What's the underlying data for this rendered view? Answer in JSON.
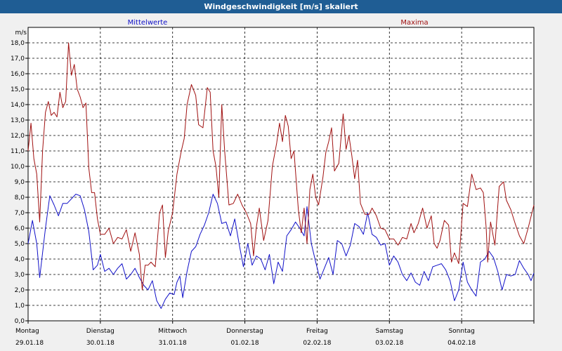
{
  "window": {
    "title": "Windgeschwindigkeit [m/s] skaliert"
  },
  "chart_data": {
    "type": "line",
    "title": "Windgeschwindigkeit [m/s] skaliert",
    "ylabel": "m/s",
    "xlabel": "",
    "ylim": [
      0,
      19
    ],
    "yticks": [
      "0,0",
      "1,0",
      "2,0",
      "3,0",
      "4,0",
      "5,0",
      "6,0",
      "7,0",
      "8,0",
      "9,0",
      "10,0",
      "11,0",
      "12,0",
      "13,0",
      "14,0",
      "15,0",
      "16,0",
      "17,0",
      "18,0"
    ],
    "xlim": [
      0,
      7
    ],
    "days": [
      {
        "weekday": "Montag",
        "date": "29.01.18"
      },
      {
        "weekday": "Dienstag",
        "date": "30.01.18"
      },
      {
        "weekday": "Mittwoch",
        "date": "31.01.18"
      },
      {
        "weekday": "Donnerstag",
        "date": "01.02.18"
      },
      {
        "weekday": "Freitag",
        "date": "02.02.18"
      },
      {
        "weekday": "Samstag",
        "date": "03.02.18"
      },
      {
        "weekday": "Sonntag",
        "date": "04.02.18"
      }
    ],
    "grid": true,
    "legend": "top",
    "series": [
      {
        "name": "Mittelwerte",
        "color": "#1010c8",
        "points": [
          [
            0.0,
            5.0
          ],
          [
            0.06,
            6.5
          ],
          [
            0.12,
            5.0
          ],
          [
            0.16,
            2.8
          ],
          [
            0.24,
            6.0
          ],
          [
            0.3,
            8.1
          ],
          [
            0.36,
            7.5
          ],
          [
            0.42,
            6.8
          ],
          [
            0.48,
            7.6
          ],
          [
            0.54,
            7.6
          ],
          [
            0.6,
            7.9
          ],
          [
            0.66,
            8.2
          ],
          [
            0.72,
            8.1
          ],
          [
            0.78,
            7.2
          ],
          [
            0.84,
            5.8
          ],
          [
            0.9,
            3.3
          ],
          [
            0.96,
            3.6
          ],
          [
            1.0,
            4.3
          ],
          [
            1.06,
            3.2
          ],
          [
            1.12,
            3.4
          ],
          [
            1.18,
            3.0
          ],
          [
            1.24,
            3.4
          ],
          [
            1.3,
            3.7
          ],
          [
            1.36,
            2.7
          ],
          [
            1.42,
            3.0
          ],
          [
            1.48,
            3.4
          ],
          [
            1.54,
            2.8
          ],
          [
            1.6,
            2.3
          ],
          [
            1.66,
            2.0
          ],
          [
            1.72,
            2.6
          ],
          [
            1.78,
            1.3
          ],
          [
            1.84,
            0.8
          ],
          [
            1.9,
            1.4
          ],
          [
            1.96,
            1.8
          ],
          [
            2.02,
            1.7
          ],
          [
            2.06,
            2.5
          ],
          [
            2.1,
            2.9
          ],
          [
            2.14,
            1.5
          ],
          [
            2.2,
            3.2
          ],
          [
            2.26,
            4.5
          ],
          [
            2.32,
            4.8
          ],
          [
            2.38,
            5.6
          ],
          [
            2.44,
            6.2
          ],
          [
            2.5,
            7.0
          ],
          [
            2.56,
            8.2
          ],
          [
            2.62,
            7.6
          ],
          [
            2.68,
            6.3
          ],
          [
            2.74,
            6.4
          ],
          [
            2.8,
            5.5
          ],
          [
            2.86,
            6.6
          ],
          [
            2.92,
            5.0
          ],
          [
            2.98,
            3.5
          ],
          [
            3.04,
            5.0
          ],
          [
            3.1,
            3.6
          ],
          [
            3.16,
            4.2
          ],
          [
            3.22,
            4.0
          ],
          [
            3.28,
            3.3
          ],
          [
            3.34,
            4.3
          ],
          [
            3.4,
            2.4
          ],
          [
            3.46,
            3.8
          ],
          [
            3.52,
            3.2
          ],
          [
            3.58,
            5.5
          ],
          [
            3.64,
            5.9
          ],
          [
            3.7,
            6.4
          ],
          [
            3.76,
            6.0
          ],
          [
            3.82,
            5.5
          ],
          [
            3.86,
            7.4
          ],
          [
            3.92,
            5.0
          ],
          [
            3.98,
            3.8
          ],
          [
            4.04,
            2.7
          ],
          [
            4.1,
            3.4
          ],
          [
            4.16,
            4.1
          ],
          [
            4.22,
            3.0
          ],
          [
            4.28,
            5.2
          ],
          [
            4.34,
            5.0
          ],
          [
            4.4,
            4.2
          ],
          [
            4.46,
            4.9
          ],
          [
            4.52,
            6.3
          ],
          [
            4.58,
            6.1
          ],
          [
            4.64,
            5.6
          ],
          [
            4.7,
            7.0
          ],
          [
            4.76,
            5.6
          ],
          [
            4.82,
            5.4
          ],
          [
            4.88,
            4.9
          ],
          [
            4.94,
            5.0
          ],
          [
            5.0,
            3.6
          ],
          [
            5.06,
            4.2
          ],
          [
            5.12,
            3.8
          ],
          [
            5.18,
            3.0
          ],
          [
            5.24,
            2.6
          ],
          [
            5.3,
            3.1
          ],
          [
            5.36,
            2.5
          ],
          [
            5.42,
            2.3
          ],
          [
            5.48,
            3.2
          ],
          [
            5.54,
            2.6
          ],
          [
            5.6,
            3.5
          ],
          [
            5.66,
            3.6
          ],
          [
            5.72,
            3.7
          ],
          [
            5.78,
            3.3
          ],
          [
            5.84,
            2.6
          ],
          [
            5.9,
            1.3
          ],
          [
            5.96,
            2.0
          ],
          [
            6.02,
            3.8
          ],
          [
            6.08,
            2.5
          ],
          [
            6.14,
            2.0
          ],
          [
            6.2,
            1.6
          ],
          [
            6.26,
            3.8
          ],
          [
            6.32,
            4.0
          ],
          [
            6.38,
            4.5
          ],
          [
            6.44,
            4.1
          ],
          [
            6.5,
            3.2
          ],
          [
            6.56,
            2.0
          ],
          [
            6.62,
            3.0
          ],
          [
            6.68,
            2.9
          ],
          [
            6.74,
            3.0
          ],
          [
            6.8,
            3.9
          ],
          [
            6.86,
            3.4
          ],
          [
            6.92,
            3.0
          ],
          [
            6.96,
            2.6
          ],
          [
            7.0,
            3.1
          ]
        ]
      },
      {
        "name": "Maxima",
        "color": "#a01010",
        "points": [
          [
            0.0,
            11.0
          ],
          [
            0.04,
            12.8
          ],
          [
            0.08,
            10.5
          ],
          [
            0.12,
            9.5
          ],
          [
            0.16,
            6.4
          ],
          [
            0.2,
            11.0
          ],
          [
            0.24,
            13.5
          ],
          [
            0.28,
            14.2
          ],
          [
            0.32,
            13.3
          ],
          [
            0.36,
            13.5
          ],
          [
            0.4,
            13.2
          ],
          [
            0.44,
            14.8
          ],
          [
            0.48,
            13.8
          ],
          [
            0.52,
            14.2
          ],
          [
            0.56,
            18.0
          ],
          [
            0.6,
            15.9
          ],
          [
            0.64,
            16.6
          ],
          [
            0.68,
            15.0
          ],
          [
            0.72,
            14.5
          ],
          [
            0.76,
            13.8
          ],
          [
            0.8,
            14.1
          ],
          [
            0.84,
            9.9
          ],
          [
            0.88,
            8.3
          ],
          [
            0.92,
            8.3
          ],
          [
            0.96,
            6.6
          ],
          [
            1.0,
            5.6
          ],
          [
            1.06,
            5.6
          ],
          [
            1.12,
            6.0
          ],
          [
            1.18,
            5.0
          ],
          [
            1.24,
            5.4
          ],
          [
            1.3,
            5.3
          ],
          [
            1.36,
            5.9
          ],
          [
            1.42,
            4.5
          ],
          [
            1.48,
            5.7
          ],
          [
            1.54,
            4.3
          ],
          [
            1.58,
            2.0
          ],
          [
            1.62,
            3.6
          ],
          [
            1.66,
            3.6
          ],
          [
            1.7,
            3.8
          ],
          [
            1.76,
            3.5
          ],
          [
            1.82,
            7.0
          ],
          [
            1.86,
            7.5
          ],
          [
            1.9,
            4.1
          ],
          [
            1.94,
            5.8
          ],
          [
            2.0,
            7.0
          ],
          [
            2.06,
            9.5
          ],
          [
            2.12,
            11.0
          ],
          [
            2.16,
            11.8
          ],
          [
            2.2,
            14.0
          ],
          [
            2.26,
            15.3
          ],
          [
            2.32,
            14.6
          ],
          [
            2.36,
            12.7
          ],
          [
            2.42,
            12.5
          ],
          [
            2.48,
            15.1
          ],
          [
            2.52,
            14.8
          ],
          [
            2.56,
            11.0
          ],
          [
            2.6,
            10.0
          ],
          [
            2.64,
            8.0
          ],
          [
            2.68,
            14.0
          ],
          [
            2.72,
            11.0
          ],
          [
            2.78,
            7.5
          ],
          [
            2.84,
            7.6
          ],
          [
            2.9,
            8.2
          ],
          [
            2.96,
            7.5
          ],
          [
            3.02,
            7.0
          ],
          [
            3.08,
            6.3
          ],
          [
            3.12,
            4.2
          ],
          [
            3.16,
            6.1
          ],
          [
            3.2,
            7.3
          ],
          [
            3.26,
            5.2
          ],
          [
            3.32,
            6.5
          ],
          [
            3.38,
            10.0
          ],
          [
            3.44,
            11.5
          ],
          [
            3.48,
            12.8
          ],
          [
            3.52,
            11.6
          ],
          [
            3.56,
            13.3
          ],
          [
            3.6,
            12.6
          ],
          [
            3.64,
            10.5
          ],
          [
            3.68,
            11.0
          ],
          [
            3.74,
            7.2
          ],
          [
            3.78,
            5.7
          ],
          [
            3.82,
            7.3
          ],
          [
            3.86,
            5.0
          ],
          [
            3.9,
            8.5
          ],
          [
            3.94,
            9.5
          ],
          [
            3.98,
            8.0
          ],
          [
            4.02,
            7.5
          ],
          [
            4.08,
            9.3
          ],
          [
            4.12,
            10.9
          ],
          [
            4.16,
            11.6
          ],
          [
            4.2,
            12.5
          ],
          [
            4.24,
            9.7
          ],
          [
            4.3,
            10.2
          ],
          [
            4.36,
            13.4
          ],
          [
            4.4,
            11.1
          ],
          [
            4.44,
            12.0
          ],
          [
            4.48,
            10.7
          ],
          [
            4.52,
            9.2
          ],
          [
            4.56,
            10.4
          ],
          [
            4.6,
            7.6
          ],
          [
            4.66,
            6.9
          ],
          [
            4.72,
            6.9
          ],
          [
            4.76,
            7.3
          ],
          [
            4.82,
            6.8
          ],
          [
            4.88,
            6.0
          ],
          [
            4.94,
            5.9
          ],
          [
            5.0,
            5.3
          ],
          [
            5.06,
            5.3
          ],
          [
            5.12,
            4.9
          ],
          [
            5.18,
            5.4
          ],
          [
            5.24,
            5.3
          ],
          [
            5.3,
            6.3
          ],
          [
            5.34,
            5.7
          ],
          [
            5.4,
            6.3
          ],
          [
            5.46,
            7.3
          ],
          [
            5.52,
            6.0
          ],
          [
            5.58,
            6.8
          ],
          [
            5.62,
            5.0
          ],
          [
            5.66,
            4.7
          ],
          [
            5.7,
            5.2
          ],
          [
            5.76,
            6.5
          ],
          [
            5.82,
            6.2
          ],
          [
            5.86,
            3.8
          ],
          [
            5.9,
            4.4
          ],
          [
            5.96,
            3.7
          ],
          [
            6.02,
            7.6
          ],
          [
            6.08,
            7.4
          ],
          [
            6.14,
            9.5
          ],
          [
            6.2,
            8.5
          ],
          [
            6.26,
            8.6
          ],
          [
            6.3,
            8.3
          ],
          [
            6.34,
            6.0
          ],
          [
            6.36,
            3.8
          ],
          [
            6.4,
            6.4
          ],
          [
            6.46,
            4.9
          ],
          [
            6.52,
            8.7
          ],
          [
            6.58,
            9.0
          ],
          [
            6.62,
            7.8
          ],
          [
            6.68,
            7.2
          ],
          [
            6.74,
            6.3
          ],
          [
            6.8,
            5.5
          ],
          [
            6.86,
            5.0
          ],
          [
            6.92,
            6.0
          ],
          [
            7.0,
            7.5
          ]
        ]
      }
    ]
  }
}
